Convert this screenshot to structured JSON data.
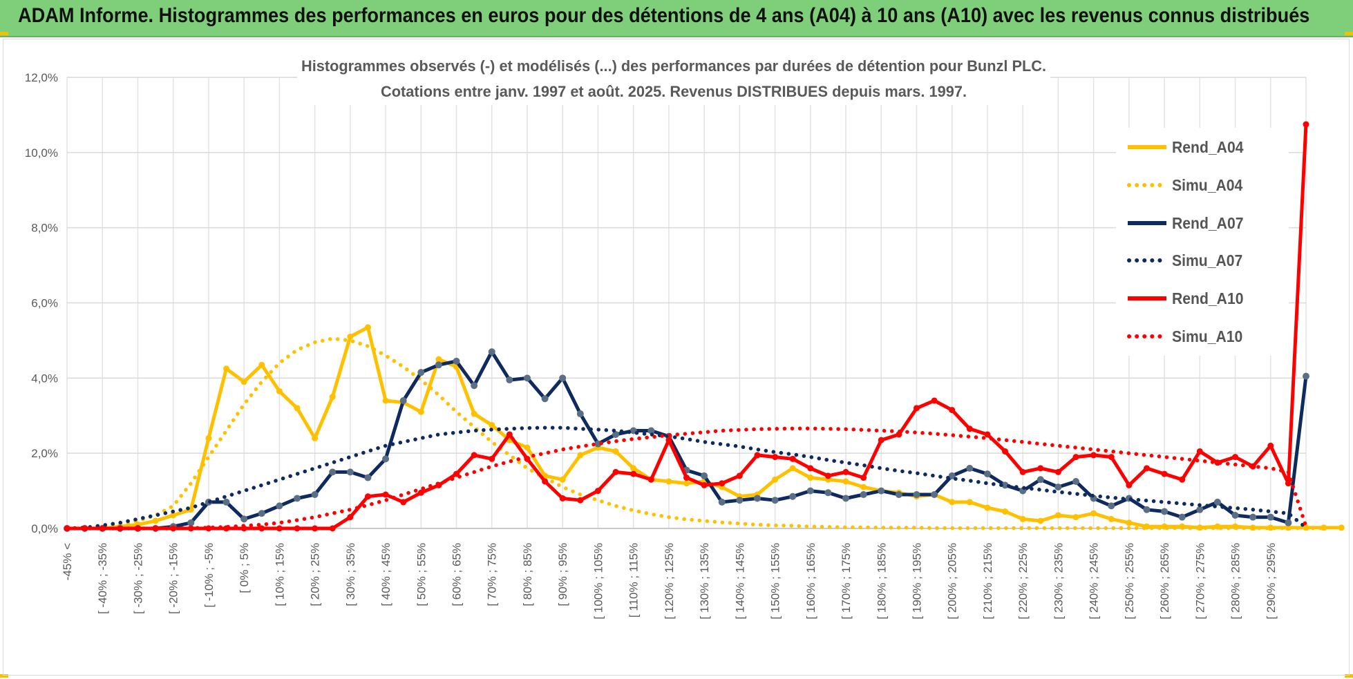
{
  "header": {
    "title": "ADAM Informe. Histogrammes des performances en euros pour des détentions de 4 ans (A04) à 10 ans (A10) avec les revenus connus distribués"
  },
  "colors": {
    "header_bg": "#7fcf7a",
    "A04": "#ffc000",
    "A07": "#0f2a5e",
    "A10": "#ff0000",
    "A07_marker": "#5a6f86",
    "grid": "#d9d9d9"
  },
  "chart_data": {
    "type": "line",
    "title": "Histogrammes observés (-) et modélisés (...)  des performances par durées de détention pour Bunzl PLC.",
    "subtitle": "Cotations entre janv. 1997 et août. 2025. Revenus DISTRIBUES depuis mars. 1997.",
    "ylim": [
      0,
      12
    ],
    "yticks": [
      "0,0%",
      "2,0%",
      "4,0%",
      "6,0%",
      "8,0%",
      "10,0%",
      "12,0%"
    ],
    "grid": true,
    "legend_position": "right",
    "x_labels": [
      "-45% <",
      "[ -40% ; -35%",
      "[ -30% ; -25%",
      "[ -20% ; -15%",
      "[ -10% ; -5%",
      "[ 0% ; 5%",
      "[ 10% ; 15%",
      "[ 20% ; 25%",
      "[ 30% ; 35%",
      "[ 40% ; 45%",
      "[ 50% ; 55%",
      "[ 60% ; 65%",
      "[ 70% ; 75%",
      "[ 80% ; 85%",
      "[ 90% ; 95%",
      "[ 100% ; 105%",
      "[ 110% ; 115%",
      "[ 120% ; 125%",
      "[ 130% ; 135%",
      "[ 140% ; 145%",
      "[ 150% ; 155%",
      "[ 160% ; 165%",
      "[ 170% ; 175%",
      "[ 180% ; 185%",
      "[ 190% ; 195%",
      "[ 200% ; 205%",
      "[ 210% ; 215%",
      "[ 220% ; 225%",
      "[ 230% ; 235%",
      "[ 240% ; 245%",
      "[ 250% ; 255%",
      "[ 260% ; 265%",
      "[ 270% ; 275%",
      "[ 280% ; 285%",
      "[ 290% ; 295%"
    ],
    "series": [
      {
        "name": "Rend_A04",
        "style": "solid",
        "markers": false,
        "values": [
          0,
          0,
          0,
          0.05,
          0.1,
          0.2,
          0.35,
          0.5,
          2.4,
          4.25,
          3.9,
          4.35,
          3.65,
          3.2,
          2.4,
          3.5,
          5.1,
          5.35,
          3.4,
          3.35,
          3.1,
          4.5,
          4.3,
          3.05,
          2.75,
          2.35,
          2.15,
          1.4,
          1.3,
          1.95,
          2.15,
          2.05,
          1.6,
          1.3,
          1.25,
          1.2,
          1.25,
          1.1,
          0.85,
          0.9,
          1.3,
          1.6,
          1.35,
          1.3,
          1.25,
          1.1,
          1.0,
          0.95,
          0.85,
          0.9,
          0.7,
          0.7,
          0.55,
          0.45,
          0.25,
          0.2,
          0.35,
          0.3,
          0.4,
          0.25,
          0.15,
          0.05,
          0.05,
          0.05,
          0.02,
          0.05,
          0.05,
          0.02,
          0.02,
          0.02,
          0.02,
          0.02,
          0.02
        ]
      },
      {
        "name": "Simu_A04",
        "style": "dotted",
        "markers": false,
        "values": [
          0,
          0.01,
          0.05,
          0.1,
          0.2,
          0.35,
          0.6,
          1.2,
          1.9,
          2.6,
          3.3,
          3.9,
          4.4,
          4.75,
          4.95,
          5.05,
          5.0,
          4.85,
          4.6,
          4.3,
          3.95,
          3.55,
          3.1,
          2.7,
          2.3,
          1.95,
          1.6,
          1.35,
          1.1,
          0.9,
          0.75,
          0.6,
          0.48,
          0.38,
          0.3,
          0.24,
          0.2,
          0.16,
          0.13,
          0.1,
          0.08,
          0.07,
          0.05,
          0.04,
          0.03,
          0.03,
          0.02,
          0.02,
          0.02,
          0.01,
          0.01,
          0.01,
          0.01,
          0.01,
          0.01,
          0.01,
          0.01,
          0.01,
          0.01,
          0.01,
          0.01,
          0.01,
          0.01,
          0.01,
          0.01,
          0.01,
          0.01,
          0.01,
          0.01,
          0.01,
          0.01,
          0.01
        ]
      },
      {
        "name": "Rend_A07",
        "style": "solid",
        "markers": true,
        "values": [
          0,
          0,
          0,
          0,
          0,
          0,
          0.05,
          0.15,
          0.7,
          0.7,
          0.25,
          0.4,
          0.6,
          0.8,
          0.9,
          1.5,
          1.5,
          1.35,
          1.85,
          3.4,
          4.15,
          4.35,
          4.45,
          3.8,
          4.7,
          3.95,
          4.0,
          3.45,
          4.0,
          3.05,
          2.25,
          2.5,
          2.6,
          2.6,
          2.45,
          1.55,
          1.4,
          0.7,
          0.75,
          0.8,
          0.75,
          0.85,
          1.0,
          0.95,
          0.8,
          0.9,
          1.0,
          0.9,
          0.9,
          0.9,
          1.4,
          1.6,
          1.45,
          1.15,
          1.0,
          1.3,
          1.1,
          1.25,
          0.8,
          0.6,
          0.8,
          0.5,
          0.45,
          0.3,
          0.5,
          0.7,
          0.35,
          0.3,
          0.3,
          0.15,
          4.05
        ]
      },
      {
        "name": "Simu_A07",
        "style": "dotted",
        "markers": false,
        "values": [
          0,
          0.02,
          0.08,
          0.15,
          0.25,
          0.35,
          0.45,
          0.55,
          0.7,
          0.85,
          1.0,
          1.15,
          1.3,
          1.45,
          1.6,
          1.75,
          1.9,
          2.05,
          2.2,
          2.3,
          2.4,
          2.5,
          2.55,
          2.6,
          2.63,
          2.65,
          2.67,
          2.68,
          2.68,
          2.65,
          2.63,
          2.6,
          2.55,
          2.5,
          2.45,
          2.38,
          2.3,
          2.24,
          2.18,
          2.1,
          2.03,
          1.97,
          1.9,
          1.82,
          1.75,
          1.68,
          1.6,
          1.53,
          1.47,
          1.4,
          1.33,
          1.27,
          1.2,
          1.14,
          1.08,
          1.03,
          0.97,
          0.92,
          0.87,
          0.82,
          0.78,
          0.74,
          0.7,
          0.66,
          0.62,
          0.58,
          0.54,
          0.5,
          0.45,
          0.4,
          0.02
        ]
      },
      {
        "name": "Rend_A10",
        "style": "solid",
        "markers": false,
        "values": [
          0,
          0,
          0,
          0,
          0,
          0,
          0,
          0,
          0,
          0,
          0,
          0,
          0,
          0,
          0,
          0,
          0.3,
          0.85,
          0.9,
          0.7,
          0.95,
          1.15,
          1.45,
          1.95,
          1.85,
          2.5,
          1.85,
          1.25,
          0.8,
          0.75,
          1.0,
          1.5,
          1.45,
          1.3,
          2.35,
          1.35,
          1.15,
          1.2,
          1.4,
          1.95,
          1.9,
          1.85,
          1.6,
          1.4,
          1.5,
          1.35,
          2.35,
          2.5,
          3.2,
          3.4,
          3.15,
          2.65,
          2.5,
          2.05,
          1.5,
          1.6,
          1.5,
          1.9,
          1.95,
          1.9,
          1.15,
          1.6,
          1.45,
          1.3,
          2.05,
          1.75,
          1.9,
          1.65,
          2.2,
          1.2,
          10.75
        ]
      },
      {
        "name": "Simu_A10",
        "style": "dotted",
        "markers": false,
        "values": [
          0,
          0,
          0,
          0,
          0,
          0,
          0,
          0.01,
          0.02,
          0.04,
          0.07,
          0.1,
          0.15,
          0.22,
          0.3,
          0.4,
          0.5,
          0.62,
          0.75,
          0.9,
          1.05,
          1.2,
          1.35,
          1.5,
          1.65,
          1.78,
          1.9,
          2.0,
          2.1,
          2.18,
          2.25,
          2.32,
          2.38,
          2.43,
          2.48,
          2.52,
          2.56,
          2.6,
          2.62,
          2.64,
          2.65,
          2.66,
          2.66,
          2.65,
          2.64,
          2.62,
          2.6,
          2.58,
          2.55,
          2.52,
          2.48,
          2.44,
          2.4,
          2.35,
          2.3,
          2.25,
          2.2,
          2.15,
          2.1,
          2.05,
          2.0,
          1.95,
          1.9,
          1.85,
          1.8,
          1.75,
          1.7,
          1.65,
          1.6,
          1.5,
          0.05
        ]
      }
    ]
  }
}
